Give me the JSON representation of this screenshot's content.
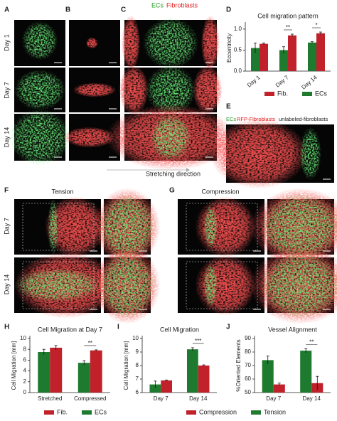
{
  "panels": [
    "A",
    "B",
    "C",
    "D",
    "E",
    "F",
    "G",
    "H",
    "I",
    "J"
  ],
  "header": {
    "ecs": "ECs",
    "fibroblasts": "Fibroblasts"
  },
  "rows": [
    "Day 1",
    "Day 7",
    "Day 14"
  ],
  "stretching": "Stretching direction",
  "e_legend": {
    "ecs": "ECs",
    "rfp": "RFP-Fibroblasts",
    "unlabeled": "unlabeled-fibroblasts"
  },
  "f_title": "Tension",
  "g_title": "Compression",
  "fg_rows": [
    "Day 7",
    "Day 14"
  ],
  "chart_data": [
    {
      "type": "bar",
      "title": "Cell migration pattern",
      "y_label": "Eccentricity",
      "categories": [
        "Day 1",
        "Day 7",
        "Day 14"
      ],
      "series": [
        {
          "name": "ECs",
          "color": "#1e7a2e",
          "values": [
            0.55,
            0.5,
            0.68
          ],
          "errors": [
            0.12,
            0.08,
            0.02
          ]
        },
        {
          "name": "Fib.",
          "color": "#c0212b",
          "values": [
            0.65,
            0.85,
            0.9
          ],
          "errors": [
            0.02,
            0.03,
            0.03
          ]
        }
      ],
      "ylim": [
        0,
        1.1
      ],
      "yticks": [
        {
          "value": 0,
          "label": "0.0"
        },
        {
          "value": 0.5,
          "label": "0.5"
        },
        {
          "value": 1,
          "label": "1.0"
        }
      ],
      "annotations": [
        {
          "text": "**",
          "category": "Day 7"
        },
        {
          "text": "*",
          "category": "Day 14"
        }
      ]
    },
    {
      "type": "bar",
      "title": "Cell Migration at Day 7",
      "y_label": "Cell Migration [mm]",
      "categories": [
        "Stretched",
        "Compressed"
      ],
      "series": [
        {
          "name": "ECs",
          "color": "#1e7a2e",
          "values": [
            7.5,
            5.5
          ],
          "errors": [
            0.5,
            0.4
          ]
        },
        {
          "name": "Fib.",
          "color": "#c0212b",
          "values": [
            8.3,
            7.8
          ],
          "errors": [
            0.4,
            0.1
          ]
        }
      ],
      "ylim": [
        0,
        10
      ],
      "yticks": [
        0,
        2,
        4,
        6,
        8,
        10
      ],
      "annotations": [
        {
          "text": "**",
          "category": "Compressed"
        }
      ]
    },
    {
      "type": "bar",
      "title": "Cell Migration",
      "y_label": "Cell Migration [mm]",
      "categories": [
        "Day 7",
        "Day 14"
      ],
      "series": [
        {
          "name": "Tension",
          "color": "#1e7a2e",
          "values": [
            6.6,
            9.2
          ],
          "errors": [
            0.25,
            0.12
          ]
        },
        {
          "name": "Compression",
          "color": "#c0212b",
          "values": [
            6.9,
            8.0
          ],
          "errors": [
            0.03,
            0.05
          ]
        }
      ],
      "ylim": [
        6,
        10
      ],
      "yticks": [
        6,
        7,
        8,
        9,
        10
      ],
      "annotations": [
        {
          "text": "***",
          "category": "Day 14"
        }
      ]
    },
    {
      "type": "bar",
      "title": "Vessel Alignment",
      "y_label": "%Oriented Elements",
      "categories": [
        "Day 7",
        "Day 14"
      ],
      "series": [
        {
          "name": "Tension",
          "color": "#1e7a2e",
          "values": [
            74,
            81
          ],
          "errors": [
            3,
            1.5
          ]
        },
        {
          "name": "Compression",
          "color": "#c0212b",
          "values": [
            56,
            57
          ],
          "errors": [
            1,
            5
          ]
        }
      ],
      "ylim": [
        50,
        90
      ],
      "yticks": [
        50,
        60,
        70,
        80,
        90
      ],
      "annotations": [
        {
          "text": "**",
          "category": "Day 14"
        }
      ]
    }
  ]
}
